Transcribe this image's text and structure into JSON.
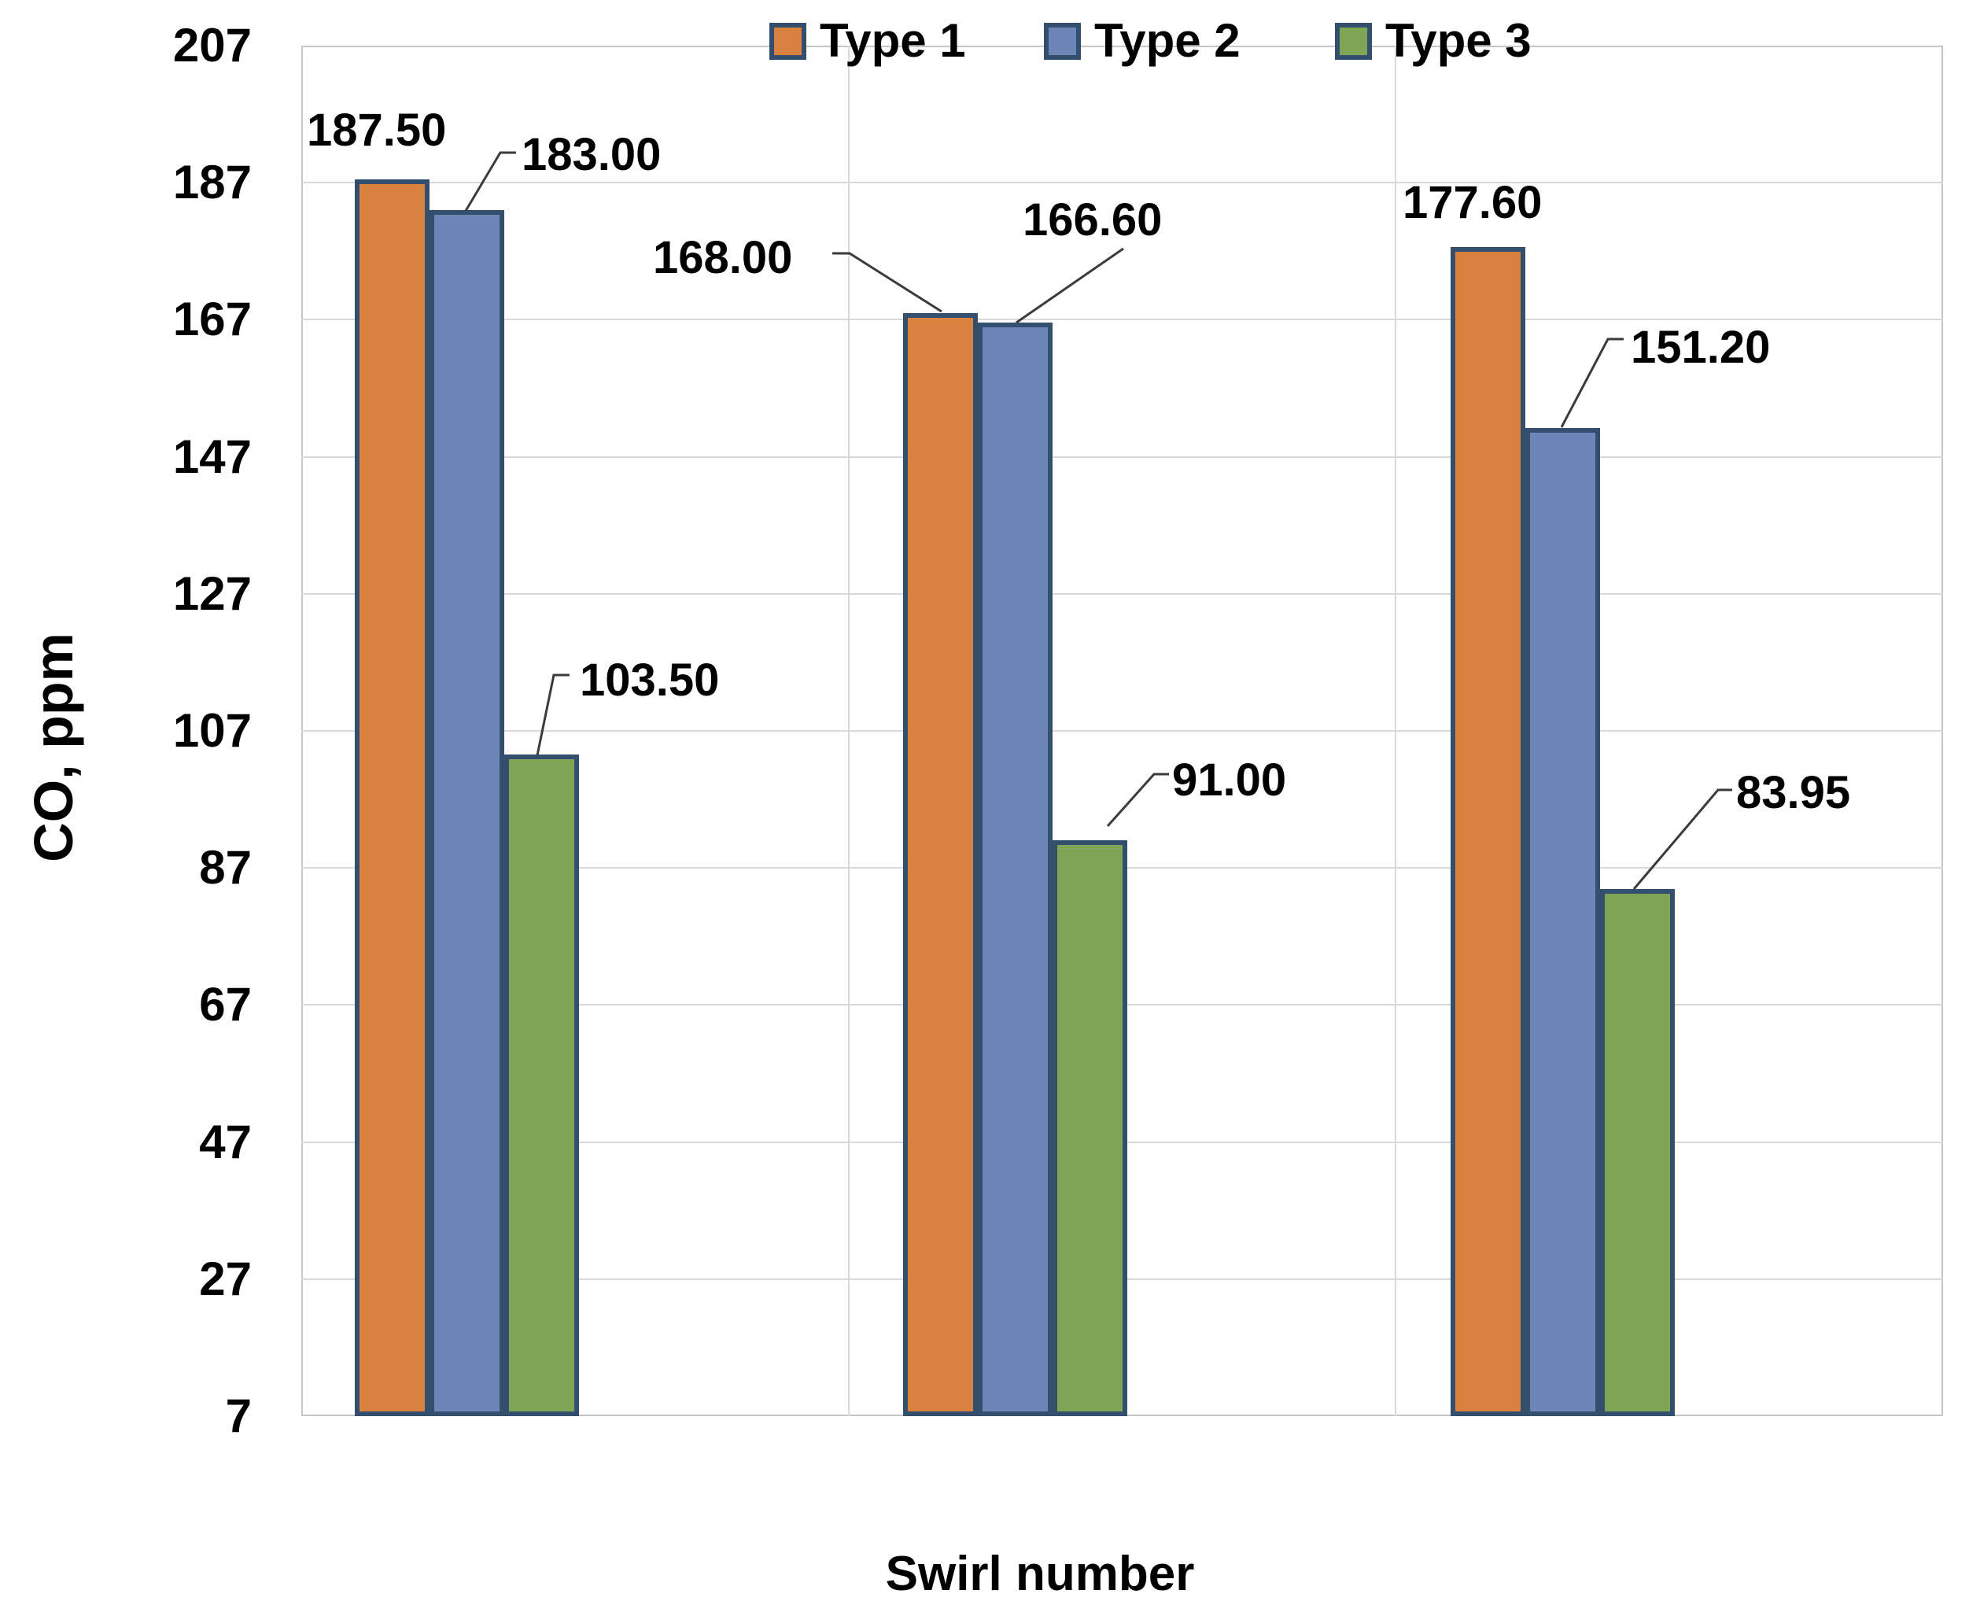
{
  "chart_data": {
    "type": "bar",
    "title": "",
    "xlabel": "Swirl number",
    "ylabel": "CO, ppm",
    "ylim": [
      7,
      207
    ],
    "ytick_step": 20,
    "yticks": [
      207,
      187,
      167,
      147,
      127,
      107,
      87,
      67,
      47,
      27,
      7
    ],
    "categories": [
      "",
      "",
      ""
    ],
    "grid": true,
    "legend_position": "top",
    "plot_border_color": "#c6c6c6",
    "gridline_color": "#d9d9d9",
    "bar_border_color": "#344e6e",
    "leader_line_color": "#3b3b3b",
    "series": [
      {
        "name": "Type 1",
        "color": "#d9813f",
        "values": [
          187.5,
          168.0,
          177.6
        ],
        "labels": [
          "187.50",
          "168.00",
          "177.60"
        ]
      },
      {
        "name": "Type 2",
        "color": "#6c86b7",
        "values": [
          183.0,
          166.6,
          151.2
        ],
        "labels": [
          "183.00",
          "166.60",
          "151.20"
        ]
      },
      {
        "name": "Type 3",
        "color": "#7fa557",
        "values": [
          103.5,
          91.0,
          83.95
        ],
        "labels": [
          "103.50",
          "91.00",
          "83.95"
        ]
      }
    ]
  }
}
